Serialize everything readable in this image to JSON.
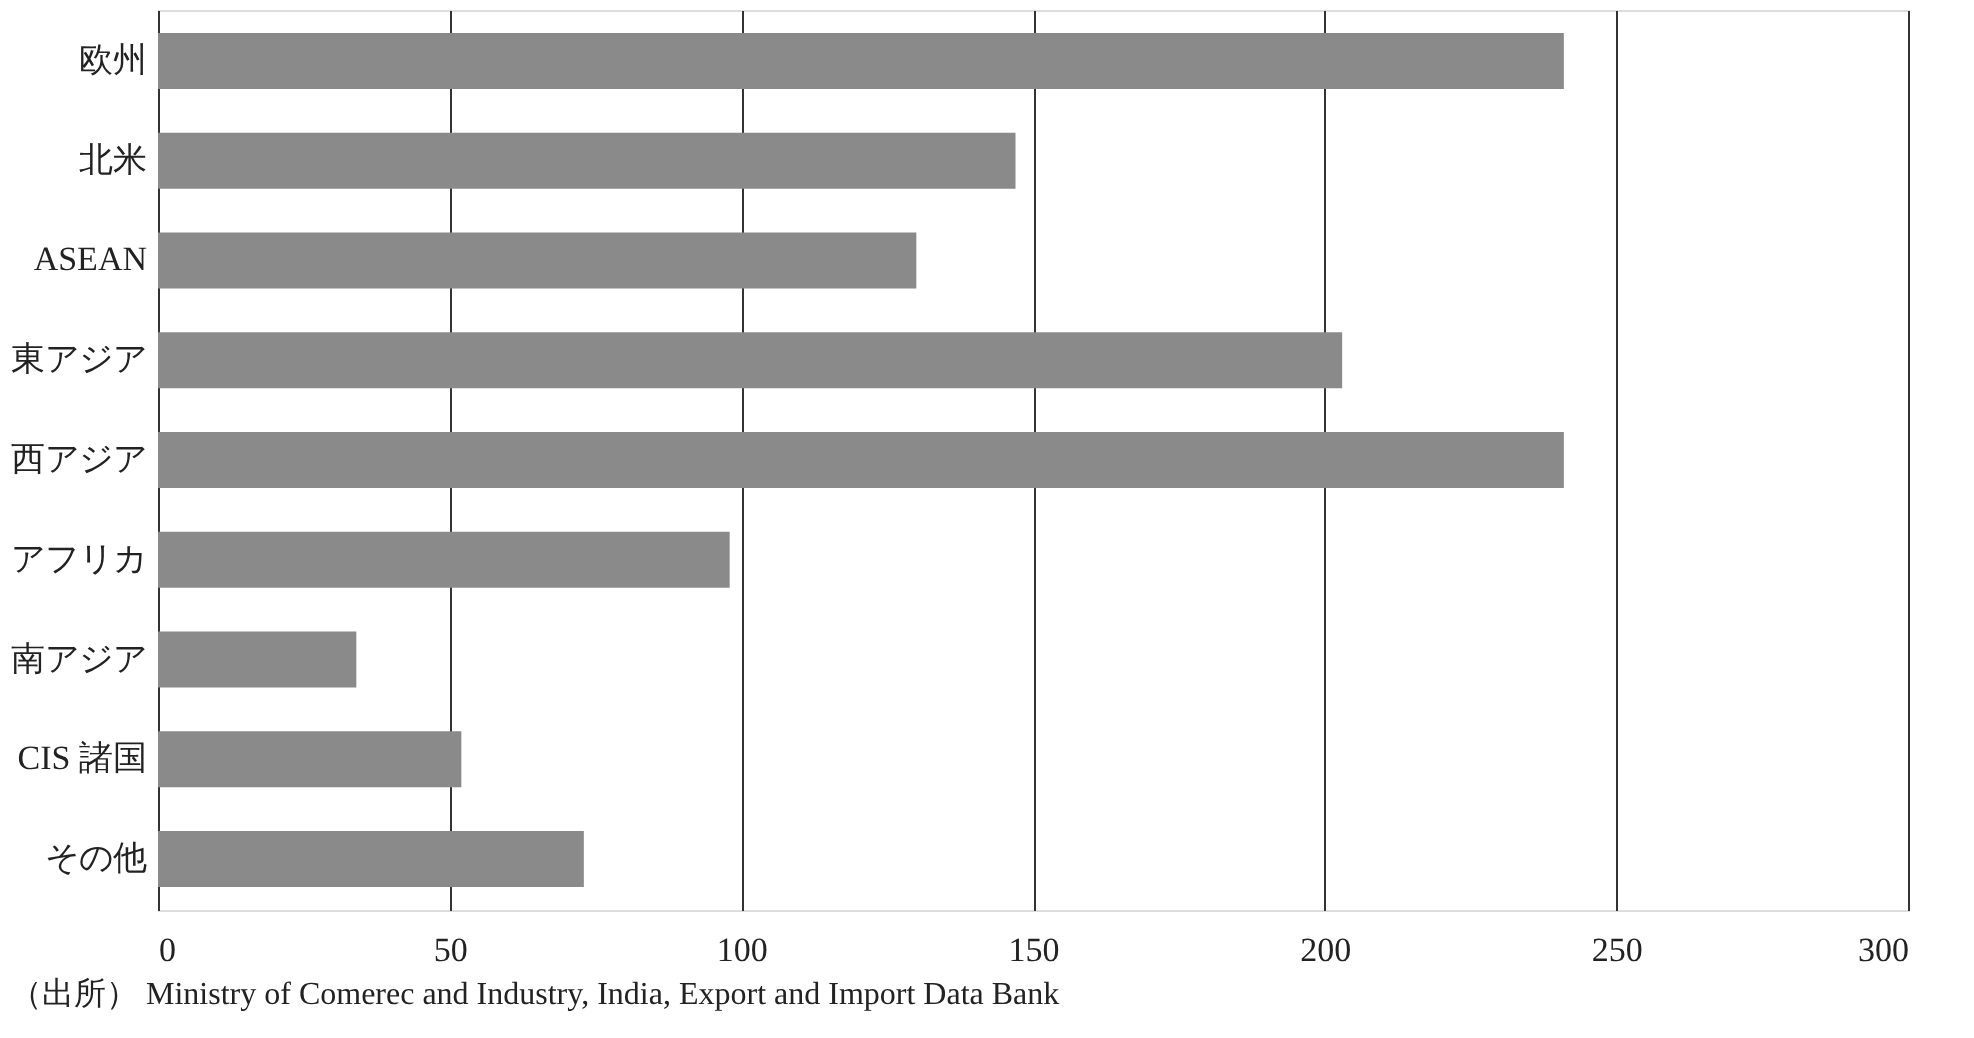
{
  "chart_data": {
    "type": "bar",
    "orientation": "horizontal",
    "categories": [
      "欧州",
      "北米",
      "ASEAN",
      "東アジア",
      "西アジア",
      "アフリカ",
      "南アジア",
      "CIS 諸国",
      "その他"
    ],
    "values": [
      241,
      147,
      130,
      203,
      241,
      98,
      34,
      52,
      73
    ],
    "color": "#8a8a8a",
    "xlim": [
      0,
      300
    ],
    "xticks": [
      0,
      50,
      100,
      150,
      200,
      250,
      300
    ],
    "grid": "x",
    "annotations": [
      "（出所） Ministry of Comerec and Industry, India, Export and Import Data Bank"
    ]
  }
}
